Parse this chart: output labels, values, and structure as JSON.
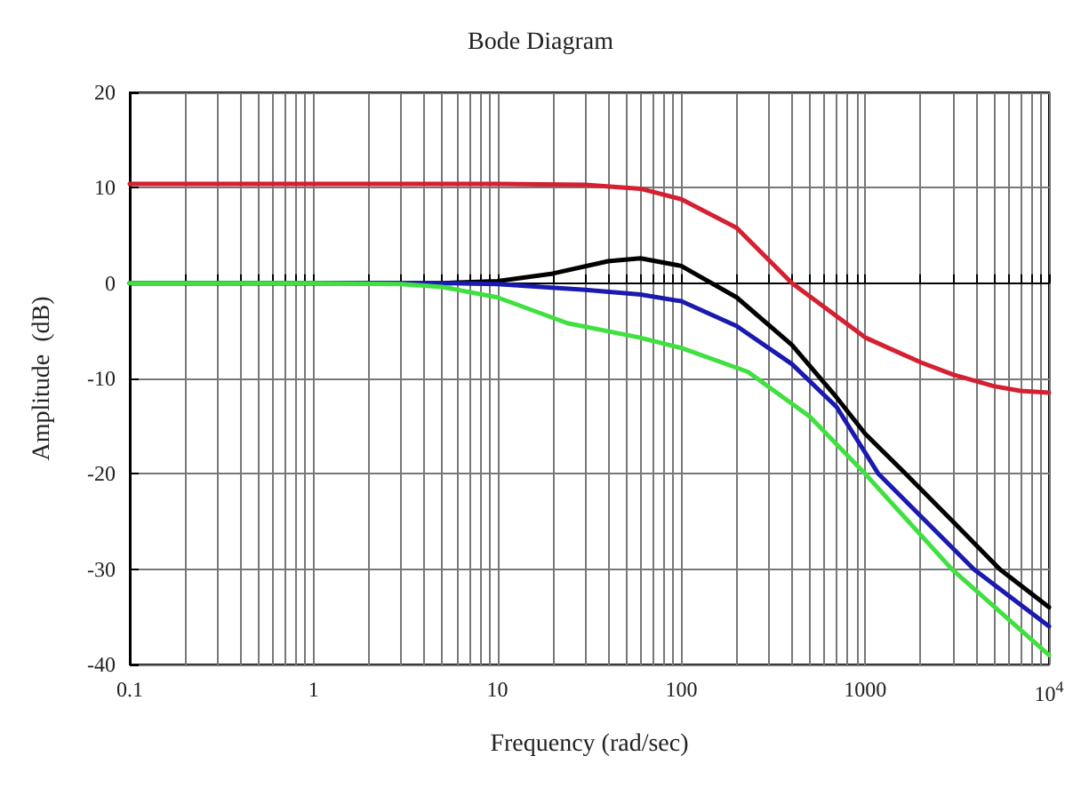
{
  "chart_data": {
    "type": "line",
    "title": "Bode Diagram",
    "xlabel": "Frequency (rad/sec)",
    "ylabel": "Amplitude  (dB)",
    "log": "x",
    "grid": true,
    "marker": "none",
    "line_style": "solid",
    "xlim": [
      0.1,
      10000
    ],
    "ylim": [
      -40,
      20
    ],
    "xticks": [
      0.1,
      {
        "value": 0.2,
        "label": null
      },
      {
        "value": 0.3,
        "label": null
      },
      {
        "value": 0.4,
        "label": null
      },
      {
        "value": 0.5,
        "label": null
      },
      {
        "value": 0.6,
        "label": null
      },
      {
        "value": 0.7,
        "label": null
      },
      {
        "value": 0.8,
        "label": null
      },
      {
        "value": 0.9,
        "label": null
      },
      1,
      {
        "value": 2,
        "label": null
      },
      {
        "value": 3,
        "label": null
      },
      {
        "value": 4,
        "label": null
      },
      {
        "value": 5,
        "label": null
      },
      {
        "value": 6,
        "label": null
      },
      {
        "value": 7,
        "label": null
      },
      {
        "value": 8,
        "label": null
      },
      {
        "value": 9,
        "label": null
      },
      10,
      {
        "value": 20,
        "label": null
      },
      {
        "value": 30,
        "label": null
      },
      {
        "value": 40,
        "label": null
      },
      {
        "value": 50,
        "label": null
      },
      {
        "value": 60,
        "label": null
      },
      {
        "value": 70,
        "label": null
      },
      {
        "value": 80,
        "label": null
      },
      {
        "value": 90,
        "label": null
      },
      100,
      {
        "value": 200,
        "label": null
      },
      {
        "value": 300,
        "label": null
      },
      {
        "value": 400,
        "label": null
      },
      {
        "value": 500,
        "label": null
      },
      {
        "value": 600,
        "label": null
      },
      {
        "value": 700,
        "label": null
      },
      {
        "value": 800,
        "label": null
      },
      {
        "value": 900,
        "label": null
      },
      1000,
      {
        "value": 2000,
        "label": null
      },
      {
        "value": 3000,
        "label": null
      },
      {
        "value": 4000,
        "label": null
      },
      {
        "value": 5000,
        "label": null
      },
      {
        "value": 6000,
        "label": null
      },
      {
        "value": 7000,
        "label": null
      },
      {
        "value": 8000,
        "label": null
      },
      {
        "value": 9000,
        "label": null
      },
      {
        "value": 10000,
        "label": "10$^{4}$"
      }
    ],
    "yticks": [
      -40,
      -30,
      -20,
      -10,
      0,
      10,
      20
    ],
    "series": [
      {
        "color": "#d42030",
        "x": [
          0.1,
          1,
          10,
          30,
          60,
          100,
          200,
          400,
          1000,
          2000,
          3000,
          5000,
          7000,
          10000
        ],
        "values": [
          10.4,
          10.4,
          10.4,
          10.3,
          9.9,
          8.8,
          5.8,
          0,
          -5.7,
          -8.3,
          -9.6,
          -10.8,
          -11.3,
          -11.5
        ]
      },
      {
        "color": "#000000",
        "x": [
          0.1,
          1,
          5,
          10,
          20,
          40,
          60,
          100,
          200,
          400,
          700,
          1000,
          1660,
          3000,
          5400,
          10000
        ],
        "values": [
          0,
          0,
          0,
          0.2,
          1,
          2.3,
          2.6,
          1.8,
          -1.5,
          -6.5,
          -12,
          -15.8,
          -20,
          -25,
          -30,
          -34
        ]
      },
      {
        "color": "#1a1ab0",
        "x": [
          0.1,
          1,
          5,
          10,
          30,
          60,
          100,
          200,
          400,
          700,
          1180,
          3900,
          10000
        ],
        "values": [
          0,
          0,
          0,
          -0.1,
          -0.7,
          -1.2,
          -1.9,
          -4.5,
          -8.5,
          -13,
          -20,
          -30,
          -36
        ]
      },
      {
        "color": "#40e040",
        "x": [
          0.1,
          1,
          3,
          5,
          10,
          24,
          59,
          100,
          230,
          500,
          1000,
          2960,
          10000
        ],
        "values": [
          0,
          0,
          -0.1,
          -0.4,
          -1.5,
          -4.2,
          -5.7,
          -6.8,
          -9.3,
          -14,
          -20,
          -30,
          -39
        ]
      }
    ]
  }
}
